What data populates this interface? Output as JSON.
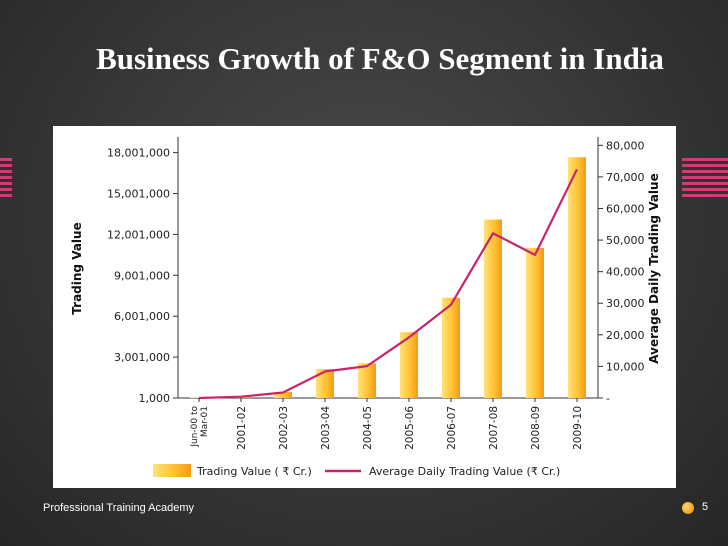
{
  "slide": {
    "title": "Business Growth of F&O Segment in India",
    "footer": "Professional Training Academy",
    "page_number": "5"
  },
  "chart_data": {
    "type": "bar",
    "title": "",
    "categories": [
      "Jun-00 to Mar-01",
      "2001-02",
      "2002-03",
      "2003-04",
      "2004-05",
      "2005-06",
      "2006-07",
      "2007-08",
      "2008-09",
      "2009-10"
    ],
    "x_tick_labels": [
      [
        "Jun-00 to",
        "Mar-01"
      ],
      [
        "2001-02"
      ],
      [
        "2002-03"
      ],
      [
        "2003-04"
      ],
      [
        "2004-05"
      ],
      [
        "2005-06"
      ],
      [
        "2006-07"
      ],
      [
        "2007-08"
      ],
      [
        "2008-09"
      ],
      [
        "2009-10"
      ]
    ],
    "ylabel": "Trading Value",
    "y2label": "Average Daily Trading Value",
    "ylim": [
      1000,
      19000000
    ],
    "y_ticks": [
      1000,
      3001000,
      6001000,
      9001000,
      12001000,
      15001000,
      18001000
    ],
    "y_tick_labels": [
      "1,000",
      "3,001,000",
      "6,001,000",
      "9,001,000",
      "12,001,000",
      "15,001,000",
      "18,001,000"
    ],
    "y2lim": [
      0,
      82000
    ],
    "y2_ticks": [
      0,
      10000,
      20000,
      30000,
      40000,
      50000,
      60000,
      70000,
      80000
    ],
    "y2_tick_labels": [
      "-",
      "10,000",
      "20,000",
      "30,000",
      "40,000",
      "50,000",
      "60,000",
      "70,000",
      "80,000"
    ],
    "series": [
      {
        "name": "Trading Value ( ₹ Cr.)",
        "type": "bar",
        "axis": "left",
        "values": [
          2365,
          101926,
          439862,
          2130610,
          2547053,
          4824174,
          7356242,
          13090478,
          11010482,
          17663665
        ]
      },
      {
        "name": "Average Daily Trading Value  (₹ Cr.)",
        "type": "line",
        "axis": "right",
        "values": [
          12,
          410,
          1752,
          8388,
          10107,
          19220,
          29543,
          52153,
          45311,
          72392
        ]
      }
    ],
    "legend_position": "bottom",
    "colors": {
      "bar_light": "#ffe27a",
      "bar_dark": "#f39a1b",
      "line": "#c8246e",
      "axis": "#333333"
    }
  }
}
